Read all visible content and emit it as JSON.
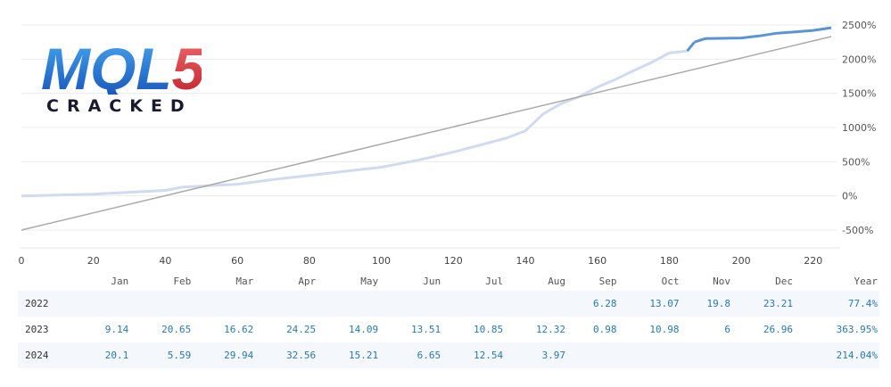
{
  "logo": {
    "brand": "MQL5",
    "tagline": "CRACKED"
  },
  "chart_data": {
    "type": "line",
    "x_ticks": [
      0,
      20,
      40,
      60,
      80,
      100,
      120,
      140,
      160,
      180,
      200,
      220
    ],
    "y_ticks": [
      "2500%",
      "2000%",
      "1500%",
      "1000%",
      "500%",
      "0%",
      "-500%"
    ],
    "xlim": [
      0,
      226
    ],
    "ylim": [
      -500,
      2500
    ],
    "grid": true,
    "series": [
      {
        "color": "#d0daf0",
        "x": [
          0,
          20,
          40,
          45,
          60,
          70,
          80,
          100,
          110,
          120,
          130,
          135,
          140,
          145,
          150,
          155,
          160,
          165,
          170,
          175,
          180,
          185
        ],
        "y": [
          0,
          25,
          80,
          130,
          170,
          240,
          300,
          420,
          520,
          640,
          780,
          850,
          950,
          1200,
          1350,
          1450,
          1590,
          1700,
          1830,
          1950,
          2090,
          2120
        ]
      },
      {
        "color": "#5b93d3",
        "x": [
          187,
          190,
          200,
          205,
          210,
          215,
          220,
          225
        ],
        "y": [
          2250,
          2300,
          2310,
          2340,
          2380,
          2400,
          2420,
          2460
        ]
      },
      {
        "color": "#aaaaaa",
        "x": [
          0,
          225
        ],
        "y": [
          -500,
          2330
        ]
      }
    ]
  },
  "returns_table": {
    "headers": [
      "",
      "Jan",
      "Feb",
      "Mar",
      "Apr",
      "May",
      "Jun",
      "Jul",
      "Aug",
      "Sep",
      "Oct",
      "Nov",
      "Dec",
      "Year"
    ],
    "rows": [
      [
        "2022",
        "",
        "",
        "",
        "",
        "",
        "",
        "",
        "",
        "6.28",
        "13.07",
        "19.8",
        "23.21",
        "77.4%"
      ],
      [
        "2023",
        "9.14",
        "20.65",
        "16.62",
        "24.25",
        "14.09",
        "13.51",
        "10.85",
        "12.32",
        "0.98",
        "10.98",
        "6",
        "26.96",
        "363.95%"
      ],
      [
        "2024",
        "20.1",
        "5.59",
        "29.94",
        "32.56",
        "15.21",
        "6.65",
        "12.54",
        "3.97",
        "",
        "",
        "",
        "",
        "214.04%"
      ]
    ]
  }
}
